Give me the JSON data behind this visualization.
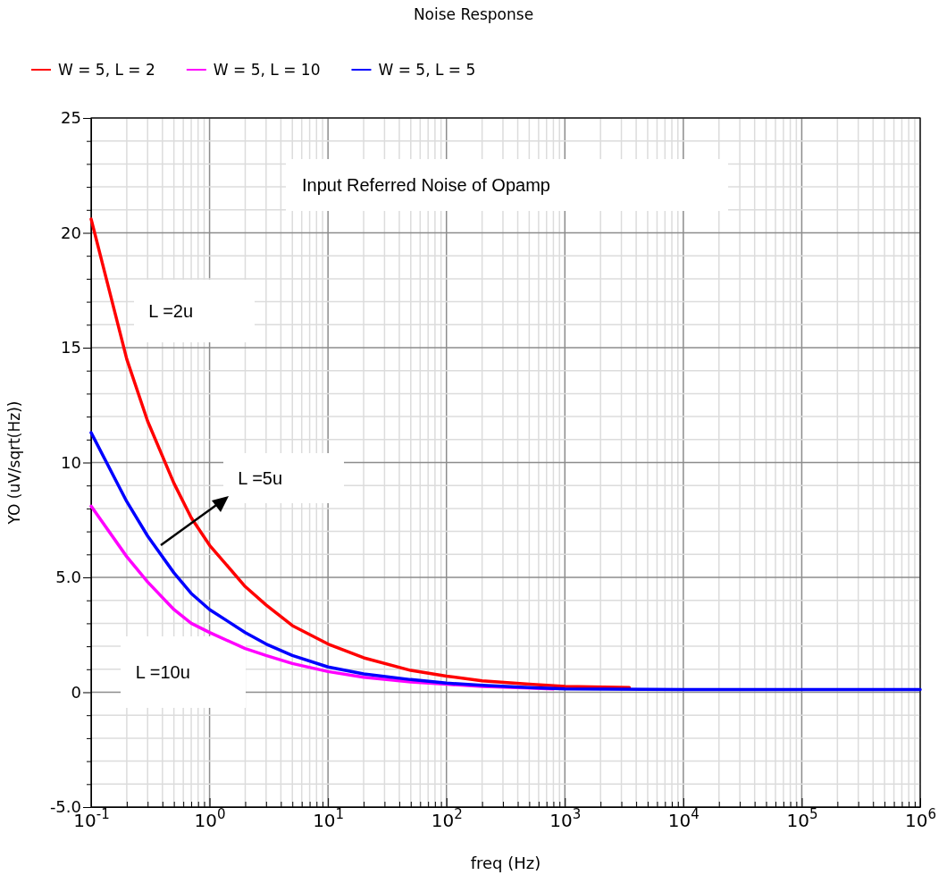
{
  "chart_data": {
    "type": "line",
    "title": "Noise Response",
    "xlabel": "freq (Hz)",
    "ylabel": "YO (uV/sqrt(Hz))",
    "log": "x",
    "grid": true,
    "legend": "top left",
    "line_style": "solid",
    "marker": "none",
    "xlim": [
      0.1,
      1000000
    ],
    "ylim": [
      -5,
      25
    ],
    "xticks": [
      {
        "value": 0.1,
        "label": "10$^{-1}$"
      },
      {
        "value": 0.2,
        "label": null
      },
      {
        "value": 0.3,
        "label": null
      },
      {
        "value": 0.4,
        "label": null
      },
      {
        "value": 0.5,
        "label": null
      },
      {
        "value": 0.6,
        "label": null
      },
      {
        "value": 0.7,
        "label": null
      },
      {
        "value": 0.8,
        "label": null
      },
      {
        "value": 0.9,
        "label": null
      },
      {
        "value": 1,
        "label": "10$^{0}$"
      },
      {
        "value": 2,
        "label": null
      },
      {
        "value": 3,
        "label": null
      },
      {
        "value": 4,
        "label": null
      },
      {
        "value": 5,
        "label": null
      },
      {
        "value": 6,
        "label": null
      },
      {
        "value": 7,
        "label": null
      },
      {
        "value": 8,
        "label": null
      },
      {
        "value": 9,
        "label": null
      },
      {
        "value": 10,
        "label": "10$^{1}$"
      },
      {
        "value": 20,
        "label": null
      },
      {
        "value": 30,
        "label": null
      },
      {
        "value": 40,
        "label": null
      },
      {
        "value": 50,
        "label": null
      },
      {
        "value": 60,
        "label": null
      },
      {
        "value": 70,
        "label": null
      },
      {
        "value": 80,
        "label": null
      },
      {
        "value": 90,
        "label": null
      },
      {
        "value": 100,
        "label": "10$^{2}$"
      },
      {
        "value": 200,
        "label": null
      },
      {
        "value": 300,
        "label": null
      },
      {
        "value": 400,
        "label": null
      },
      {
        "value": 500,
        "label": null
      },
      {
        "value": 600,
        "label": null
      },
      {
        "value": 700,
        "label": null
      },
      {
        "value": 800,
        "label": null
      },
      {
        "value": 900,
        "label": null
      },
      {
        "value": 1000,
        "label": "10$^{3}$"
      },
      {
        "value": 2000,
        "label": null
      },
      {
        "value": 3000,
        "label": null
      },
      {
        "value": 4000,
        "label": null
      },
      {
        "value": 5000,
        "label": null
      },
      {
        "value": 6000,
        "label": null
      },
      {
        "value": 7000,
        "label": null
      },
      {
        "value": 8000,
        "label": null
      },
      {
        "value": 9000,
        "label": null
      },
      {
        "value": 10000,
        "label": "10$^{4}$"
      },
      {
        "value": 20000,
        "label": null
      },
      {
        "value": 30000,
        "label": null
      },
      {
        "value": 40000,
        "label": null
      },
      {
        "value": 50000,
        "label": null
      },
      {
        "value": 60000,
        "label": null
      },
      {
        "value": 70000,
        "label": null
      },
      {
        "value": 80000,
        "label": null
      },
      {
        "value": 90000,
        "label": null
      },
      {
        "value": 100000,
        "label": "10$^{5}$"
      },
      {
        "value": 200000,
        "label": null
      },
      {
        "value": 300000,
        "label": null
      },
      {
        "value": 400000,
        "label": null
      },
      {
        "value": 500000,
        "label": null
      },
      {
        "value": 600000,
        "label": null
      },
      {
        "value": 700000,
        "label": null
      },
      {
        "value": 800000,
        "label": null
      },
      {
        "value": 900000,
        "label": null
      },
      {
        "value": 1000000,
        "label": "10$^{6}$"
      }
    ],
    "yticks": [
      {
        "value": -5,
        "label": "-5.0"
      },
      {
        "value": -4,
        "label": null
      },
      {
        "value": -3,
        "label": null
      },
      {
        "value": -2,
        "label": null
      },
      {
        "value": -1,
        "label": null
      },
      0,
      {
        "value": 1,
        "label": null
      },
      {
        "value": 2,
        "label": null
      },
      {
        "value": 3,
        "label": null
      },
      {
        "value": 4,
        "label": null
      },
      {
        "value": 5,
        "label": "5.0"
      },
      {
        "value": 6,
        "label": null
      },
      {
        "value": 7,
        "label": null
      },
      {
        "value": 8,
        "label": null
      },
      {
        "value": 9,
        "label": null
      },
      10,
      {
        "value": 11,
        "label": null
      },
      {
        "value": 12,
        "label": null
      },
      {
        "value": 13,
        "label": null
      },
      {
        "value": 14,
        "label": null
      },
      15,
      {
        "value": 16,
        "label": null
      },
      {
        "value": 17,
        "label": null
      },
      {
        "value": 18,
        "label": null
      },
      {
        "value": 19,
        "label": null
      },
      20,
      {
        "value": 21,
        "label": null
      },
      {
        "value": 22,
        "label": null
      },
      {
        "value": 23,
        "label": null
      },
      {
        "value": 24,
        "label": null
      },
      25
    ],
    "annotations": [
      "Input Referred Noise of Opamp",
      "L =2u",
      "L =5u",
      "L =10u"
    ],
    "series": [
      {
        "name": "W = 5, L = 2",
        "color": "#ff0000",
        "x": [
          0.1,
          0.2,
          0.3,
          0.5,
          0.7,
          1,
          2,
          3,
          5,
          10,
          20,
          50,
          100,
          200,
          500,
          1000,
          3500
        ],
        "values": [
          20.6,
          14.5,
          11.8,
          9.1,
          7.6,
          6.4,
          4.6,
          3.8,
          2.9,
          2.1,
          1.5,
          0.95,
          0.7,
          0.5,
          0.35,
          0.25,
          0.2
        ]
      },
      {
        "name": "W = 5, L = 10",
        "color": "#ff00ff",
        "x": [
          0.1,
          0.2,
          0.3,
          0.5,
          0.7,
          1,
          2,
          3,
          5,
          10,
          20,
          50,
          100,
          200,
          500,
          800
        ],
        "values": [
          8.1,
          5.9,
          4.8,
          3.6,
          3.0,
          2.6,
          1.9,
          1.6,
          1.25,
          0.9,
          0.65,
          0.45,
          0.35,
          0.25,
          0.18,
          0.15
        ]
      },
      {
        "name": "W = 5, L = 5",
        "color": "#0000ff",
        "x": [
          0.1,
          0.2,
          0.3,
          0.5,
          0.7,
          1,
          2,
          3,
          5,
          10,
          20,
          50,
          100,
          200,
          500,
          1000,
          10000,
          100000,
          1000000
        ],
        "values": [
          11.3,
          8.3,
          6.8,
          5.2,
          4.3,
          3.6,
          2.6,
          2.1,
          1.6,
          1.1,
          0.8,
          0.55,
          0.4,
          0.3,
          0.2,
          0.15,
          0.12,
          0.12,
          0.12
        ]
      }
    ]
  }
}
